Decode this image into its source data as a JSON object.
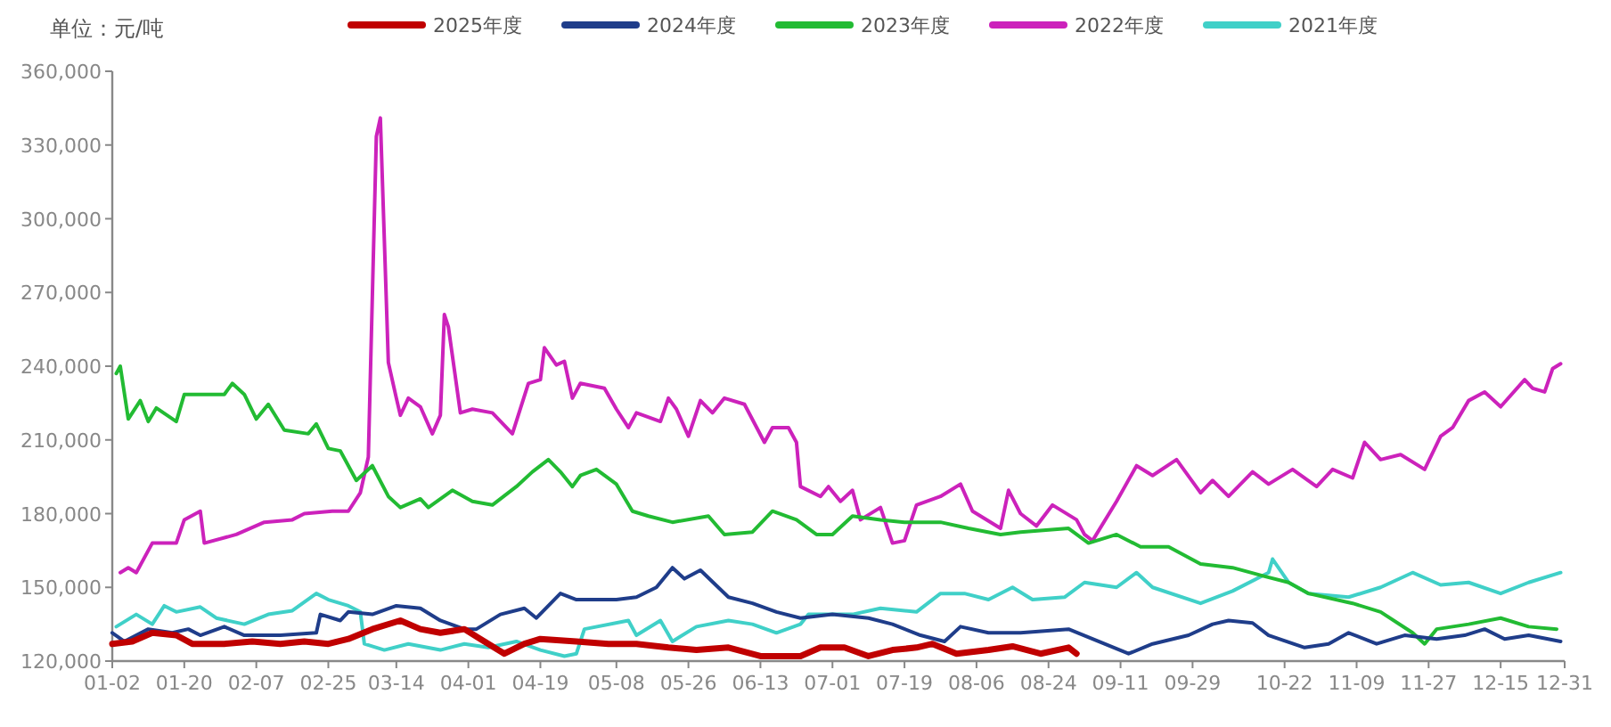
{
  "chart_data": {
    "type": "line",
    "ylabel": "单位：元/吨",
    "legend": "top",
    "xlim": [
      "--01-02",
      "--12-31"
    ],
    "xticks": [
      {
        "value": "--01-02",
        "label": "01-02"
      },
      {
        "value": "--01-20",
        "label": "01-20"
      },
      {
        "value": "--02-07",
        "label": "02-07"
      },
      {
        "value": "--02-25",
        "label": "02-25"
      },
      {
        "value": "--03-14",
        "label": "03-14"
      },
      {
        "value": "--04-01",
        "label": "04-01"
      },
      {
        "value": "--04-19",
        "label": "04-19"
      },
      {
        "value": "--05-08",
        "label": "05-08"
      },
      {
        "value": "--05-26",
        "label": "05-26"
      },
      {
        "value": "--06-13",
        "label": "06-13"
      },
      {
        "value": "--07-01",
        "label": "07-01"
      },
      {
        "value": "--07-19",
        "label": "07-19"
      },
      {
        "value": "--08-06",
        "label": "08-06"
      },
      {
        "value": "--08-24",
        "label": "08-24"
      },
      {
        "value": "--09-11",
        "label": "09-11"
      },
      {
        "value": "--09-29",
        "label": "09-29"
      },
      {
        "value": "--10-22",
        "label": "10-22"
      },
      {
        "value": "--11-09",
        "label": "11-09"
      },
      {
        "value": "--11-27",
        "label": "11-27"
      },
      {
        "value": "--12-15",
        "label": "12-15"
      },
      {
        "value": "--12-31",
        "label": "12-31"
      }
    ],
    "ylim": [
      120000,
      360000
    ],
    "yticks": [
      {
        "value": 120000,
        "label": "120,000"
      },
      {
        "value": 150000,
        "label": "150,000"
      },
      {
        "value": 180000,
        "label": "180,000"
      },
      {
        "value": 210000,
        "label": "210,000"
      },
      {
        "value": 240000,
        "label": "240,000"
      },
      {
        "value": 270000,
        "label": "270,000"
      },
      {
        "value": 300000,
        "label": "300,000"
      },
      {
        "value": 330000,
        "label": "330,000"
      },
      {
        "value": 360000,
        "label": "360,000"
      }
    ],
    "series": [
      {
        "name": "2025年度",
        "color": "#c00000",
        "x": [
          "--01-02",
          "--01-07",
          "--01-12",
          "--01-18",
          "--01-22",
          "--01-30",
          "--02-06",
          "--02-13",
          "--02-19",
          "--02-25",
          "--03-02",
          "--03-08",
          "--03-15",
          "--03-20",
          "--03-25",
          "--03-31",
          "--04-04",
          "--04-10",
          "--04-15",
          "--04-19",
          "--04-28",
          "--05-06",
          "--05-13",
          "--05-21",
          "--05-28",
          "--06-05",
          "--06-13",
          "--06-23",
          "--06-28",
          "--07-04",
          "--07-10",
          "--07-16",
          "--07-22",
          "--07-26",
          "--08-01",
          "--08-09",
          "--08-15",
          "--08-22",
          "--08-29",
          "--08-31"
        ],
        "values": [
          127000,
          128000,
          131500,
          130500,
          127000,
          127000,
          128000,
          127000,
          128000,
          127000,
          129000,
          133000,
          136500,
          133000,
          131500,
          133000,
          129000,
          123000,
          127000,
          129000,
          128000,
          127000,
          127000,
          125500,
          124500,
          125500,
          122000,
          122000,
          125500,
          125500,
          122000,
          124500,
          125500,
          127000,
          123000,
          124500,
          126000,
          123000,
          125500,
          123000
        ]
      },
      {
        "name": "2024年度",
        "color": "#1f3d8a",
        "x": [
          "--01-02",
          "--01-05",
          "--01-11",
          "--01-17",
          "--01-21",
          "--01-24",
          "--01-30",
          "--02-04",
          "--02-13",
          "--02-22",
          "--02-23",
          "--02-28",
          "--03-02",
          "--03-08",
          "--03-14",
          "--03-20",
          "--03-25",
          "--03-31",
          "--04-03",
          "--04-09",
          "--04-15",
          "--04-18",
          "--04-24",
          "--04-28",
          "--05-08",
          "--05-13",
          "--05-18",
          "--05-22",
          "--05-25",
          "--05-29",
          "--06-05",
          "--06-11",
          "--06-17",
          "--06-23",
          "--07-01",
          "--07-10",
          "--07-16",
          "--07-23",
          "--07-29",
          "--08-02",
          "--08-09",
          "--08-17",
          "--08-29",
          "--09-04",
          "--09-13",
          "--09-19",
          "--09-28",
          "--10-04",
          "--10-08",
          "--10-14",
          "--10-18",
          "--10-27",
          "--11-02",
          "--11-07",
          "--11-14",
          "--11-21",
          "--11-29",
          "--12-06",
          "--12-11",
          "--12-16",
          "--12-22",
          "--12-30"
        ],
        "values": [
          131500,
          128000,
          133000,
          131500,
          133000,
          130500,
          134000,
          130500,
          130500,
          131500,
          139000,
          136500,
          140000,
          139000,
          142500,
          141500,
          136500,
          133000,
          133000,
          139000,
          141500,
          137500,
          147500,
          145000,
          145000,
          146000,
          150000,
          158000,
          153500,
          157000,
          146000,
          143500,
          140000,
          137500,
          139000,
          137500,
          135000,
          130500,
          128000,
          134000,
          131500,
          131500,
          133000,
          129000,
          123000,
          127000,
          130500,
          135000,
          136500,
          135500,
          130500,
          125500,
          127000,
          131500,
          127000,
          130500,
          129000,
          130500,
          133000,
          129000,
          130500,
          128000
        ]
      },
      {
        "name": "2023年度",
        "color": "#22bb33",
        "x": [
          "--01-03",
          "--01-04",
          "--01-06",
          "--01-09",
          "--01-11",
          "--01-13",
          "--01-18",
          "--01-20",
          "--01-30",
          "--02-01",
          "--02-04",
          "--02-07",
          "--02-10",
          "--02-14",
          "--02-20",
          "--02-22",
          "--02-25",
          "--02-28",
          "--03-04",
          "--03-08",
          "--03-12",
          "--03-15",
          "--03-20",
          "--03-22",
          "--03-28",
          "--04-02",
          "--04-07",
          "--04-13",
          "--04-17",
          "--04-21",
          "--04-24",
          "--04-27",
          "--04-29",
          "--05-03",
          "--05-08",
          "--05-12",
          "--05-16",
          "--05-22",
          "--05-31",
          "--06-04",
          "--06-11",
          "--06-16",
          "--06-22",
          "--06-27",
          "--07-01",
          "--07-06",
          "--07-13",
          "--07-19",
          "--07-28",
          "--08-04",
          "--08-12",
          "--08-17",
          "--08-29",
          "--09-03",
          "--09-10",
          "--09-16",
          "--09-23",
          "--10-01",
          "--10-09",
          "--10-17",
          "--10-23",
          "--10-28",
          "--11-08",
          "--11-15",
          "--11-23",
          "--11-26",
          "--11-29",
          "--12-07",
          "--12-15",
          "--12-22",
          "--12-29"
        ],
        "values": [
          237000,
          240000,
          218500,
          226000,
          217500,
          223000,
          217500,
          228500,
          228500,
          233000,
          228500,
          218500,
          224500,
          214000,
          212500,
          216500,
          206500,
          205500,
          193500,
          199500,
          187000,
          182500,
          186000,
          182500,
          189500,
          185000,
          183500,
          191000,
          197000,
          202000,
          197000,
          191000,
          195500,
          198000,
          192000,
          181000,
          179000,
          176500,
          179000,
          171500,
          172500,
          181000,
          177500,
          171500,
          171500,
          179000,
          177500,
          176500,
          176500,
          174000,
          171500,
          172500,
          174000,
          168000,
          171500,
          166500,
          166500,
          159500,
          158000,
          154500,
          152000,
          147500,
          143500,
          140000,
          131500,
          127000,
          133000,
          135000,
          137500,
          134000,
          133000
        ]
      },
      {
        "name": "2022年度",
        "color": "#cc22bb",
        "x": [
          "--01-04",
          "--01-06",
          "--01-08",
          "--01-12",
          "--01-18",
          "--01-20",
          "--01-24",
          "--01-25",
          "--02-02",
          "--02-09",
          "--02-16",
          "--02-19",
          "--02-26",
          "--03-02",
          "--03-05",
          "--03-07",
          "--03-09",
          "--03-10",
          "--03-12",
          "--03-14",
          "--03-15",
          "--03-17",
          "--03-20",
          "--03-23",
          "--03-25",
          "--03-26",
          "--03-27",
          "--03-30",
          "--04-02",
          "--04-07",
          "--04-12",
          "--04-16",
          "--04-19",
          "--04-20",
          "--04-23",
          "--04-25",
          "--04-27",
          "--04-29",
          "--05-05",
          "--05-08",
          "--05-11",
          "--05-13",
          "--05-19",
          "--05-21",
          "--05-23",
          "--05-26",
          "--05-29",
          "--06-01",
          "--06-04",
          "--06-09",
          "--06-14",
          "--06-16",
          "--06-20",
          "--06-22",
          "--06-23",
          "--06-28",
          "--06-30",
          "--07-03",
          "--07-06",
          "--07-08",
          "--07-13",
          "--07-16",
          "--07-19",
          "--07-22",
          "--07-28",
          "--08-02",
          "--08-05",
          "--08-12",
          "--08-14",
          "--08-17",
          "--08-21",
          "--08-25",
          "--08-31",
          "--09-02",
          "--09-04",
          "--09-10",
          "--09-15",
          "--09-19",
          "--09-25",
          "--10-01",
          "--10-04",
          "--10-08",
          "--10-14",
          "--10-18",
          "--10-24",
          "--10-30",
          "--11-03",
          "--11-08",
          "--11-11",
          "--11-15",
          "--11-20",
          "--11-26",
          "--11-30",
          "--12-03",
          "--12-07",
          "--12-11",
          "--12-15",
          "--12-21",
          "--12-23",
          "--12-26",
          "--12-28",
          "--12-30"
        ],
        "values": [
          156000,
          158000,
          156000,
          168000,
          168000,
          177500,
          181000,
          168000,
          171500,
          176500,
          177500,
          180000,
          181000,
          181000,
          188500,
          203000,
          333500,
          341000,
          241500,
          227000,
          220000,
          227000,
          223500,
          212500,
          220000,
          261000,
          256000,
          221000,
          222500,
          221000,
          212500,
          233000,
          234500,
          247500,
          240500,
          242000,
          227000,
          233000,
          231000,
          222500,
          215000,
          221000,
          217500,
          227000,
          222500,
          211500,
          226000,
          221000,
          227000,
          224500,
          209000,
          215000,
          215000,
          209000,
          191000,
          187000,
          191000,
          185000,
          189500,
          177500,
          182500,
          168000,
          169000,
          183500,
          187000,
          192000,
          181000,
          174000,
          189500,
          180000,
          175000,
          183500,
          177500,
          171500,
          169000,
          185000,
          199500,
          195500,
          202000,
          188500,
          193500,
          187000,
          197000,
          192000,
          198000,
          191000,
          198000,
          194500,
          209000,
          202000,
          204000,
          198000,
          211500,
          215000,
          226000,
          229500,
          223500,
          234500,
          231000,
          229500,
          239000,
          241000
        ]
      },
      {
        "name": "2021年度",
        "color": "#40d0c8",
        "x": [
          "--01-03",
          "--01-08",
          "--01-12",
          "--01-15",
          "--01-18",
          "--01-24",
          "--01-28",
          "--02-04",
          "--02-10",
          "--02-16",
          "--02-22",
          "--02-25",
          "--03-02",
          "--03-05",
          "--03-06",
          "--03-11",
          "--03-17",
          "--03-25",
          "--03-31",
          "--04-06",
          "--04-13",
          "--04-19",
          "--04-25",
          "--04-28",
          "--04-30",
          "--05-11",
          "--05-13",
          "--05-19",
          "--05-22",
          "--05-28",
          "--06-05",
          "--06-11",
          "--06-17",
          "--06-23",
          "--06-25",
          "--07-06",
          "--07-13",
          "--07-22",
          "--07-28",
          "--08-03",
          "--08-09",
          "--08-15",
          "--08-20",
          "--08-28",
          "--09-02",
          "--09-10",
          "--09-15",
          "--09-19",
          "--10-01",
          "--10-09",
          "--10-18",
          "--10-19",
          "--10-23",
          "--10-28",
          "--11-07",
          "--11-15",
          "--11-23",
          "--11-30",
          "--12-07",
          "--12-15",
          "--12-22",
          "--12-30"
        ],
        "values": [
          134000,
          139000,
          135000,
          142500,
          140000,
          142000,
          137500,
          135000,
          139000,
          140500,
          147500,
          145000,
          142500,
          140000,
          127000,
          124500,
          127000,
          124500,
          127000,
          125500,
          128000,
          124500,
          122000,
          123000,
          133000,
          136500,
          130500,
          136500,
          128000,
          134000,
          136500,
          135000,
          131500,
          135000,
          139000,
          139000,
          141500,
          140000,
          147500,
          147500,
          145000,
          150000,
          145000,
          146000,
          152000,
          150000,
          156000,
          150000,
          143500,
          148500,
          156000,
          161500,
          152000,
          147500,
          146000,
          150000,
          156000,
          151000,
          152000,
          147500,
          152000,
          156000
        ]
      }
    ]
  }
}
